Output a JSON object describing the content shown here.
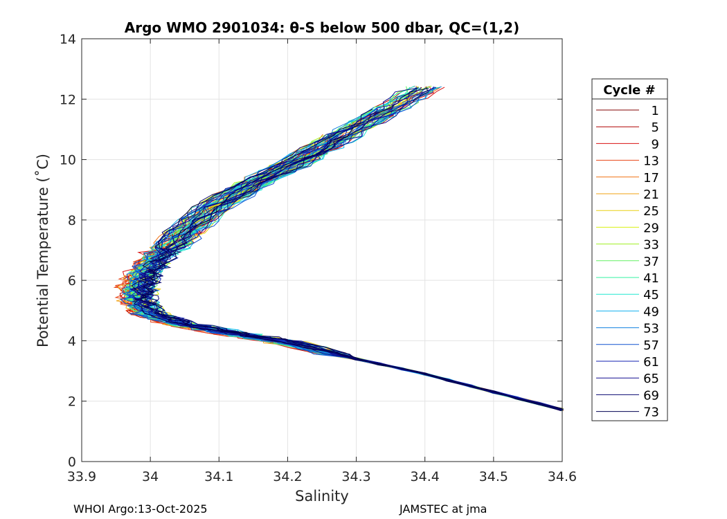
{
  "chart_data": {
    "type": "line",
    "title": "Argo WMO 2901034: θ-S below 500 dbar,  QC=(1,2)",
    "xlabel": "Salinity",
    "ylabel": "Potential Temperature (˚C)",
    "xlim": [
      33.9,
      34.6
    ],
    "ylim": [
      0,
      14
    ],
    "xticks": [
      33.9,
      34.0,
      34.1,
      34.2,
      34.3,
      34.4,
      34.5,
      34.6
    ],
    "xtick_labels": [
      "33.9",
      "34",
      "34.1",
      "34.2",
      "34.3",
      "34.4",
      "34.5",
      "34.6"
    ],
    "yticks": [
      0,
      2,
      4,
      6,
      8,
      10,
      12,
      14
    ],
    "ytick_labels": [
      "0",
      "2",
      "4",
      "6",
      "8",
      "10",
      "12",
      "14"
    ],
    "grid": true,
    "legend": {
      "title": "Cycle #",
      "placement": "outside-right",
      "entries": [
        {
          "label": "1",
          "color": "#800000"
        },
        {
          "label": "5",
          "color": "#b00000"
        },
        {
          "label": "9",
          "color": "#d81010"
        },
        {
          "label": "13",
          "color": "#e84010"
        },
        {
          "label": "17",
          "color": "#f07010"
        },
        {
          "label": "21",
          "color": "#f0a010"
        },
        {
          "label": "25",
          "color": "#e8d010"
        },
        {
          "label": "29",
          "color": "#d8f010"
        },
        {
          "label": "33",
          "color": "#a0f020"
        },
        {
          "label": "37",
          "color": "#60f060"
        },
        {
          "label": "41",
          "color": "#30f0a0"
        },
        {
          "label": "45",
          "color": "#20e8d0"
        },
        {
          "label": "49",
          "color": "#10b0f0"
        },
        {
          "label": "53",
          "color": "#1080e0"
        },
        {
          "label": "57",
          "color": "#1050d0"
        },
        {
          "label": "61",
          "color": "#1020b0"
        },
        {
          "label": "65",
          "color": "#100c90"
        },
        {
          "label": "69",
          "color": "#080670"
        },
        {
          "label": "73",
          "color": "#000050"
        }
      ]
    },
    "series_shape": {
      "description": "theta-S profiles for each cycle, read approximately from the figure",
      "base_profile": [
        {
          "s": 34.6,
          "t": 1.72
        },
        {
          "s": 34.5,
          "t": 2.3
        },
        {
          "s": 34.4,
          "t": 2.9
        },
        {
          "s": 34.3,
          "t": 3.4
        },
        {
          "s": 34.2,
          "t": 3.95
        },
        {
          "s": 34.12,
          "t": 4.25
        },
        {
          "s": 34.05,
          "t": 4.55
        },
        {
          "s": 34.0,
          "t": 4.9
        },
        {
          "s": 33.985,
          "t": 5.35
        },
        {
          "s": 33.985,
          "t": 5.8
        },
        {
          "s": 33.995,
          "t": 6.3
        },
        {
          "s": 34.02,
          "t": 6.9
        },
        {
          "s": 34.05,
          "t": 7.6
        },
        {
          "s": 34.09,
          "t": 8.4
        },
        {
          "s": 34.15,
          "t": 9.2
        },
        {
          "s": 34.22,
          "t": 10.0
        },
        {
          "s": 34.28,
          "t": 10.8
        },
        {
          "s": 34.35,
          "t": 11.7
        },
        {
          "s": 34.4,
          "t": 12.4
        }
      ]
    }
  },
  "footer": {
    "left": "WHOI Argo:13-Oct-2025",
    "right": "JAMSTEC at jma"
  }
}
